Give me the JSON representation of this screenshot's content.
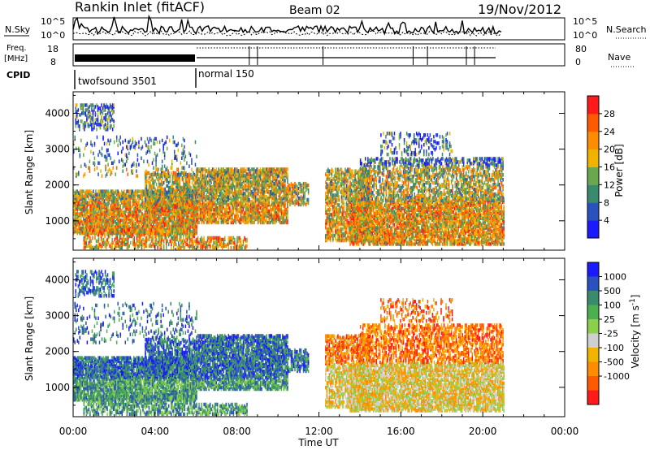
{
  "header": {
    "station": "Rankin Inlet (fitACF)",
    "beam": "Beam 02",
    "date": "19/Nov/2012"
  },
  "noise_panel": {
    "left_label": "N.Sky",
    "ytick_top": "10^5",
    "ytick_bottom": "10^0",
    "right_label": "N.Search",
    "right_tick_top": "10^5",
    "right_tick_bottom": "10^0"
  },
  "freq_panel": {
    "left_label_1": "Freq.",
    "left_label_2": "[MHz]",
    "ytick_top": "18",
    "ytick_bottom": "8",
    "right_label": "Nave",
    "right_tick_top": "80",
    "right_tick_bottom": "0"
  },
  "cpid_panel": {
    "label": "CPID",
    "segment_1": "twofsound 3501",
    "segment_2": "normal 150"
  },
  "x_axis": {
    "label": "Time UT",
    "ticks": [
      "00:00",
      "04:00",
      "08:00",
      "12:00",
      "16:00",
      "20:00",
      "00:00"
    ]
  },
  "chart_data": [
    {
      "type": "heatmap",
      "title": "Power",
      "ylabel": "Slant Range [km]",
      "xlabel": "Time UT",
      "ylim": [
        180,
        4600
      ],
      "yticks": [
        "1000",
        "2000",
        "3000",
        "4000"
      ],
      "colorbar_label": "Power [dB]",
      "colorbar_ticks": [
        "4",
        "8",
        "12",
        "16",
        "20",
        "24",
        "28"
      ],
      "colors": [
        "#1a1aff",
        "#2a52be",
        "#3a8a6e",
        "#6aa84f",
        "#f0b400",
        "#ff8c00",
        "#ff5a00",
        "#ff1a1a"
      ]
    },
    {
      "type": "heatmap",
      "title": "Velocity",
      "ylabel": "Slant Range [km]",
      "xlabel": "Time UT",
      "ylim": [
        180,
        4600
      ],
      "yticks": [
        "1000",
        "2000",
        "3000",
        "4000"
      ],
      "colorbar_label": "Velocity [m s^-1]",
      "colorbar_ticks": [
        "1000",
        "500",
        "100",
        "25",
        "-25",
        "-100",
        "-500",
        "-1000"
      ],
      "colors": [
        "#1a1aff",
        "#2a52be",
        "#3a8a6e",
        "#4caf50",
        "#8bd04a",
        "#cfcfcf",
        "#f0b400",
        "#ff8c00",
        "#ff5a00",
        "#ff1a1a"
      ]
    }
  ]
}
